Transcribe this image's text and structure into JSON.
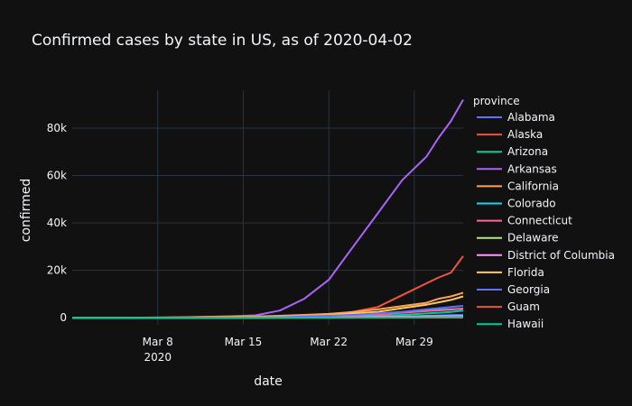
{
  "chart_data": {
    "type": "line",
    "title": "Confirmed cases by state in US, as of 2020-04-02",
    "xlabel": "date",
    "ylabel": "confirmed",
    "x_range": [
      "2020-03-01",
      "2020-04-02"
    ],
    "ylim": [
      -3000,
      96000
    ],
    "x_ticks": [
      {
        "date": "2020-03-08",
        "label": "Mar 8",
        "sublabel": "2020"
      },
      {
        "date": "2020-03-15",
        "label": "Mar 15",
        "sublabel": ""
      },
      {
        "date": "2020-03-22",
        "label": "Mar 22",
        "sublabel": ""
      },
      {
        "date": "2020-03-29",
        "label": "Mar 29",
        "sublabel": ""
      }
    ],
    "y_ticks": [
      {
        "value": 0,
        "label": "0"
      },
      {
        "value": 20000,
        "label": "20k"
      },
      {
        "value": 40000,
        "label": "40k"
      },
      {
        "value": 60000,
        "label": "60k"
      },
      {
        "value": 80000,
        "label": "80k"
      }
    ],
    "grid": true,
    "legend_title": "province",
    "legend_position": "right",
    "x": [
      "2020-03-01",
      "2020-03-03",
      "2020-03-05",
      "2020-03-08",
      "2020-03-10",
      "2020-03-12",
      "2020-03-14",
      "2020-03-16",
      "2020-03-18",
      "2020-03-20",
      "2020-03-22",
      "2020-03-24",
      "2020-03-26",
      "2020-03-28",
      "2020-03-30",
      "2020-03-31",
      "2020-04-01",
      "2020-04-02"
    ],
    "series": [
      {
        "name": "Alabama",
        "color": "#636efa",
        "values": [
          0,
          0,
          0,
          0,
          0,
          5,
          10,
          30,
          60,
          120,
          200,
          300,
          400,
          500,
          800,
          950,
          1100,
          1200
        ]
      },
      {
        "name": "Alaska",
        "color": "#ef553b",
        "values": [
          0,
          0,
          0,
          0,
          0,
          5,
          10,
          50,
          150,
          350,
          1000,
          2500,
          4500,
          9500,
          14500,
          17000,
          19000,
          26000
        ]
      },
      {
        "name": "Arizona",
        "color": "#00cc96",
        "values": [
          0,
          0,
          0,
          0,
          5,
          10,
          20,
          40,
          80,
          150,
          300,
          500,
          800,
          1200,
          1800,
          2100,
          2400,
          3000
        ]
      },
      {
        "name": "Arkansas",
        "color": "#ab63fa",
        "values": [
          0,
          0,
          0,
          0,
          200,
          400,
          600,
          1000,
          3000,
          8000,
          16000,
          30000,
          44000,
          58000,
          68000,
          76000,
          83000,
          92000
        ]
      },
      {
        "name": "California",
        "color": "#ffa15a",
        "values": [
          0,
          0,
          0,
          100,
          200,
          300,
          400,
          500,
          800,
          1200,
          1600,
          2400,
          3500,
          4900,
          6300,
          8000,
          9000,
          10500
        ]
      },
      {
        "name": "Colorado",
        "color": "#19d3f3",
        "values": [
          0,
          0,
          0,
          0,
          5,
          20,
          50,
          100,
          200,
          400,
          700,
          1100,
          1600,
          2300,
          3000,
          3300,
          3600,
          3800
        ]
      },
      {
        "name": "Connecticut",
        "color": "#ff6692",
        "values": [
          0,
          0,
          0,
          0,
          5,
          10,
          20,
          40,
          100,
          200,
          400,
          800,
          1400,
          2100,
          2800,
          3100,
          3400,
          3800
        ]
      },
      {
        "name": "Delaware",
        "color": "#b6e880",
        "values": [
          0,
          0,
          0,
          0,
          0,
          0,
          5,
          10,
          30,
          60,
          100,
          200,
          300,
          400,
          500,
          600,
          650,
          700
        ]
      },
      {
        "name": "District of Columbia",
        "color": "#ff97ff",
        "values": [
          0,
          0,
          0,
          0,
          0,
          5,
          10,
          20,
          40,
          80,
          130,
          200,
          300,
          400,
          500,
          550,
          600,
          650
        ]
      },
      {
        "name": "Florida",
        "color": "#fecb52",
        "values": [
          0,
          0,
          0,
          10,
          20,
          40,
          80,
          150,
          300,
          500,
          1000,
          1800,
          2500,
          4000,
          5500,
          6500,
          7500,
          9000
        ]
      },
      {
        "name": "Georgia",
        "color": "#636efa",
        "values": [
          0,
          0,
          0,
          5,
          10,
          20,
          50,
          100,
          200,
          500,
          800,
          1200,
          1800,
          2500,
          3500,
          4000,
          4500,
          5000
        ]
      },
      {
        "name": "Guam",
        "color": "#ef553b",
        "values": [
          0,
          0,
          0,
          0,
          0,
          0,
          0,
          0,
          5,
          10,
          20,
          30,
          45,
          55,
          60,
          65,
          70,
          75
        ]
      },
      {
        "name": "Hawaii",
        "color": "#00cc96",
        "values": [
          0,
          0,
          0,
          0,
          0,
          0,
          5,
          10,
          15,
          30,
          50,
          80,
          100,
          150,
          200,
          220,
          240,
          260
        ]
      }
    ]
  }
}
